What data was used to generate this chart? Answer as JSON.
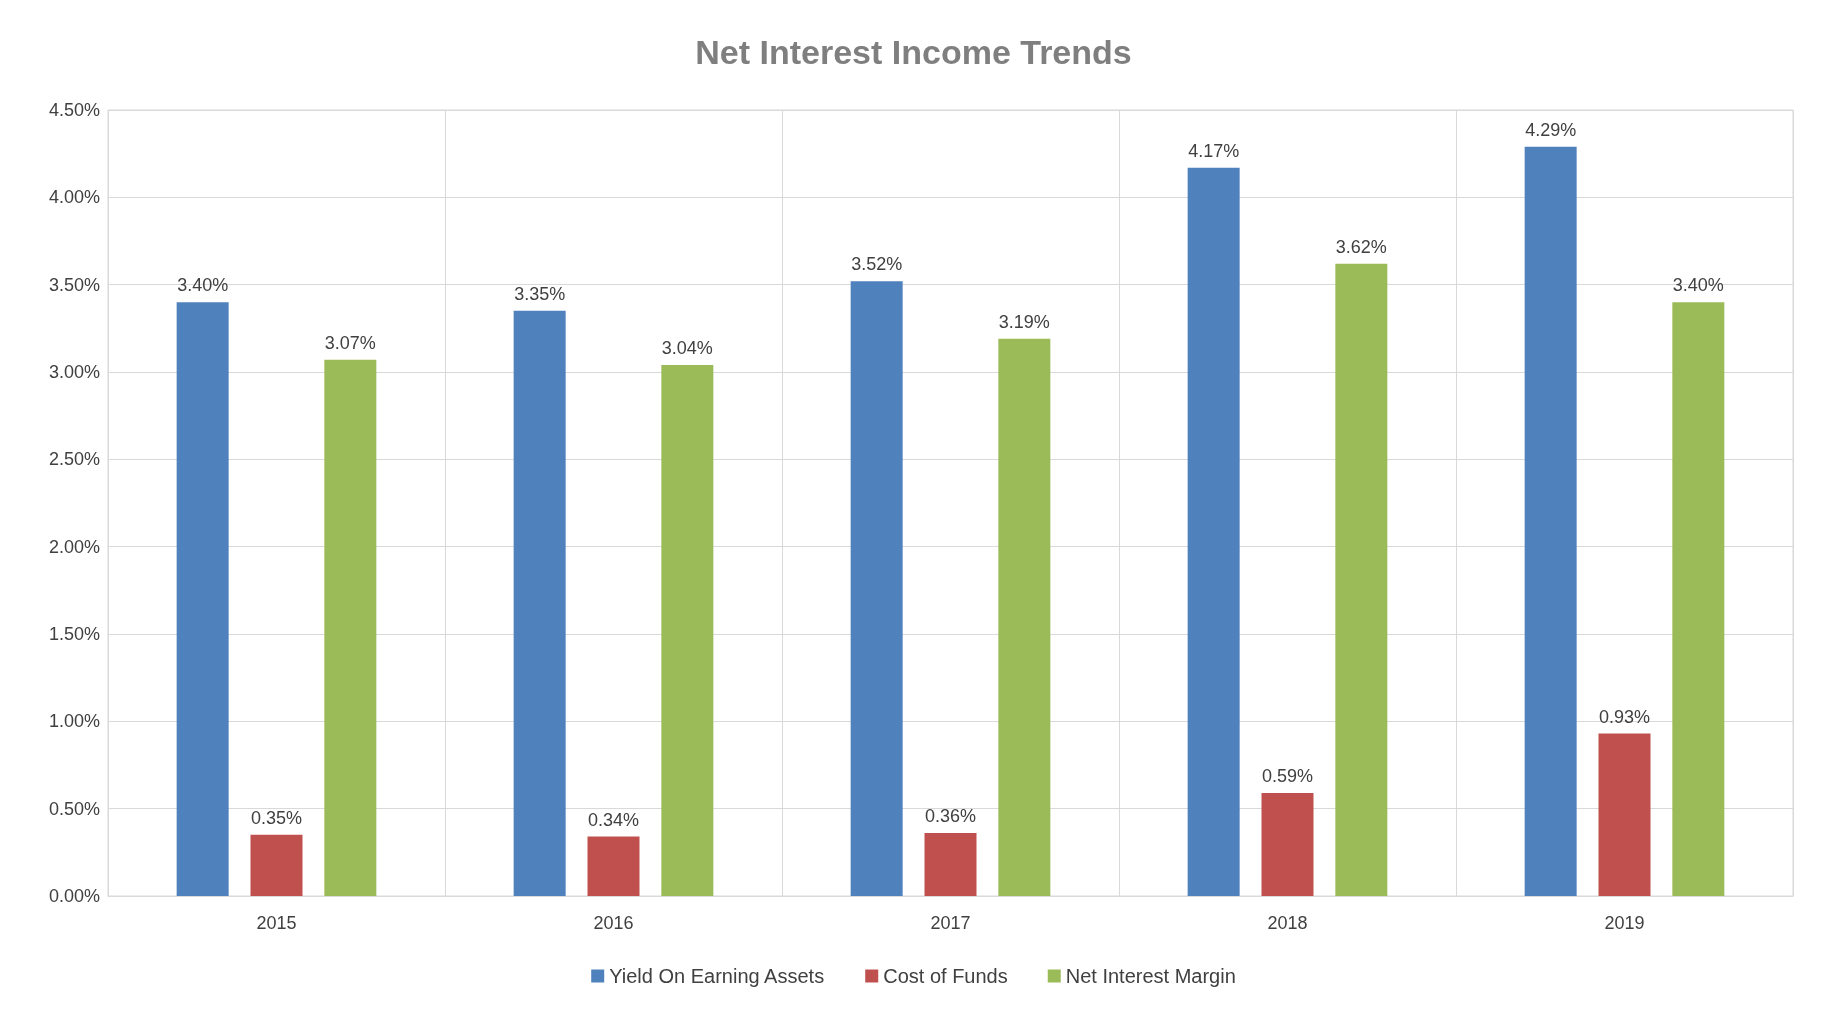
{
  "chart_data": {
    "type": "bar",
    "title": "Net Interest Income Trends",
    "categories": [
      "2015",
      "2016",
      "2017",
      "2018",
      "2019"
    ],
    "series": [
      {
        "name": "Yield On Earning Assets",
        "color": "#4f81bd",
        "values": [
          3.4,
          3.35,
          3.52,
          4.17,
          4.29
        ],
        "value_labels": [
          "3.40%",
          "3.35%",
          "3.52%",
          "4.17%",
          "4.29%"
        ]
      },
      {
        "name": "Cost of Funds",
        "color": "#c0504d",
        "values": [
          0.35,
          0.34,
          0.36,
          0.59,
          0.93
        ],
        "value_labels": [
          "0.35%",
          "0.34%",
          "0.36%",
          "0.59%",
          "0.93%"
        ]
      },
      {
        "name": "Net Interest Margin",
        "color": "#9bbb59",
        "values": [
          3.07,
          3.04,
          3.19,
          3.62,
          3.4
        ],
        "value_labels": [
          "3.07%",
          "3.04%",
          "3.19%",
          "3.62%",
          "3.40%"
        ]
      }
    ],
    "ylim": [
      0,
      4.5
    ],
    "yticks": [
      {
        "value": 0,
        "label": "0.00%"
      },
      {
        "value": 0.5,
        "label": "0.50%"
      },
      {
        "value": 1,
        "label": "1.00%"
      },
      {
        "value": 1.5,
        "label": "1.50%"
      },
      {
        "value": 2,
        "label": "2.00%"
      },
      {
        "value": 2.5,
        "label": "2.50%"
      },
      {
        "value": 3,
        "label": "3.00%"
      },
      {
        "value": 3.5,
        "label": "3.50%"
      },
      {
        "value": 4,
        "label": "4.00%"
      },
      {
        "value": 4.5,
        "label": "4.50%"
      }
    ],
    "grid": true,
    "legend": "bottom"
  }
}
